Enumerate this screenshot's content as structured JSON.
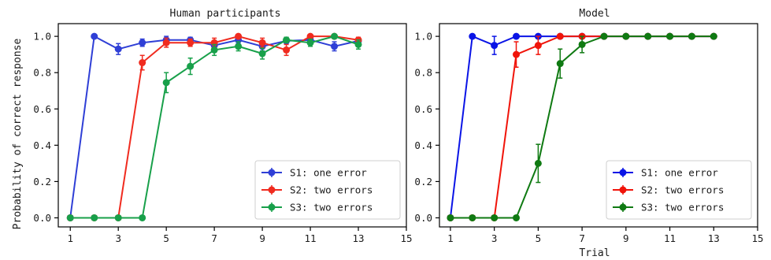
{
  "chart_data": [
    {
      "type": "line",
      "title": "Human participants",
      "xlabel": "",
      "ylabel": "Probability of correct response",
      "xlim": [
        0.5,
        15
      ],
      "ylim": [
        -0.05,
        1.07
      ],
      "xticks": [
        "1",
        "3",
        "5",
        "7",
        "9",
        "11",
        "13",
        "15"
      ],
      "yticks": [
        "0.0",
        "0.2",
        "0.4",
        "0.6",
        "0.8",
        "1.0"
      ],
      "legend_position": "lower-right",
      "grid": false,
      "series": [
        {
          "name": "S1: one error",
          "color": "#2f3fd6",
          "x": [
            1,
            2,
            3,
            4,
            5,
            6,
            7,
            8,
            9,
            10,
            11,
            12,
            13
          ],
          "y": [
            0.0,
            1.0,
            0.93,
            0.965,
            0.98,
            0.98,
            0.95,
            0.98,
            0.945,
            0.975,
            0.98,
            0.945,
            0.975
          ],
          "err": [
            0.0,
            0.0,
            0.03,
            0.02,
            0.02,
            0.015,
            0.025,
            0.02,
            0.025,
            0.015,
            0.015,
            0.025,
            0.015
          ]
        },
        {
          "name": "S2: two errors",
          "color": "#f02b1f",
          "x": [
            1,
            2,
            3,
            4,
            5,
            6,
            7,
            8,
            9,
            10,
            11,
            12,
            13
          ],
          "y": [
            0.0,
            0.0,
            0.0,
            0.855,
            0.965,
            0.965,
            0.965,
            1.0,
            0.965,
            0.925,
            1.0,
            1.0,
            0.98
          ],
          "err": [
            0.0,
            0.0,
            0.0,
            0.04,
            0.025,
            0.02,
            0.025,
            0.0,
            0.025,
            0.03,
            0.0,
            0.0,
            0.015
          ]
        },
        {
          "name": "S3: two errors",
          "color": "#18a04a",
          "x": [
            1,
            2,
            3,
            4,
            5,
            6,
            7,
            8,
            9,
            10,
            11,
            12,
            13
          ],
          "y": [
            0.0,
            0.0,
            0.0,
            0.0,
            0.745,
            0.835,
            0.925,
            0.945,
            0.905,
            0.98,
            0.965,
            1.0,
            0.955
          ],
          "err": [
            0.0,
            0.0,
            0.0,
            0.0,
            0.055,
            0.045,
            0.03,
            0.025,
            0.03,
            0.015,
            0.02,
            0.0,
            0.025
          ]
        }
      ]
    },
    {
      "type": "line",
      "title": "Model",
      "xlabel": "Trial",
      "ylabel": "",
      "xlim": [
        0.5,
        15
      ],
      "ylim": [
        -0.05,
        1.07
      ],
      "xticks": [
        "1",
        "3",
        "5",
        "7",
        "9",
        "11",
        "13",
        "15"
      ],
      "yticks": [
        "0.0",
        "0.2",
        "0.4",
        "0.6",
        "0.8",
        "1.0"
      ],
      "legend_position": "lower-right",
      "grid": false,
      "series": [
        {
          "name": "S1: one error",
          "color": "#0a14e6",
          "x": [
            1,
            2,
            3,
            4,
            5,
            6,
            7,
            8,
            9,
            10,
            11,
            12,
            13
          ],
          "y": [
            0.0,
            1.0,
            0.95,
            1.0,
            1.0,
            1.0,
            1.0,
            1.0,
            1.0,
            1.0,
            1.0,
            1.0,
            1.0
          ],
          "err": [
            0.0,
            0.0,
            0.05,
            0.0,
            0.0,
            0.0,
            0.0,
            0.0,
            0.0,
            0.0,
            0.0,
            0.0,
            0.0
          ]
        },
        {
          "name": "S2: two errors",
          "color": "#f0140a",
          "x": [
            1,
            2,
            3,
            4,
            5,
            6,
            7,
            8,
            9,
            10,
            11,
            12,
            13
          ],
          "y": [
            0.0,
            0.0,
            0.0,
            0.9,
            0.95,
            1.0,
            1.0,
            1.0,
            1.0,
            1.0,
            1.0,
            1.0,
            1.0
          ],
          "err": [
            0.0,
            0.0,
            0.0,
            0.07,
            0.05,
            0.0,
            0.0,
            0.0,
            0.0,
            0.0,
            0.0,
            0.0,
            0.0
          ]
        },
        {
          "name": "S3: two errors",
          "color": "#0f7a12",
          "x": [
            1,
            2,
            3,
            4,
            5,
            6,
            7,
            8,
            9,
            10,
            11,
            12,
            13
          ],
          "y": [
            0.0,
            0.0,
            0.0,
            0.0,
            0.3,
            0.85,
            0.955,
            1.0,
            1.0,
            1.0,
            1.0,
            1.0,
            1.0
          ],
          "err": [
            0.0,
            0.0,
            0.0,
            0.0,
            0.105,
            0.08,
            0.045,
            0.0,
            0.0,
            0.0,
            0.0,
            0.0,
            0.0
          ]
        }
      ]
    }
  ]
}
